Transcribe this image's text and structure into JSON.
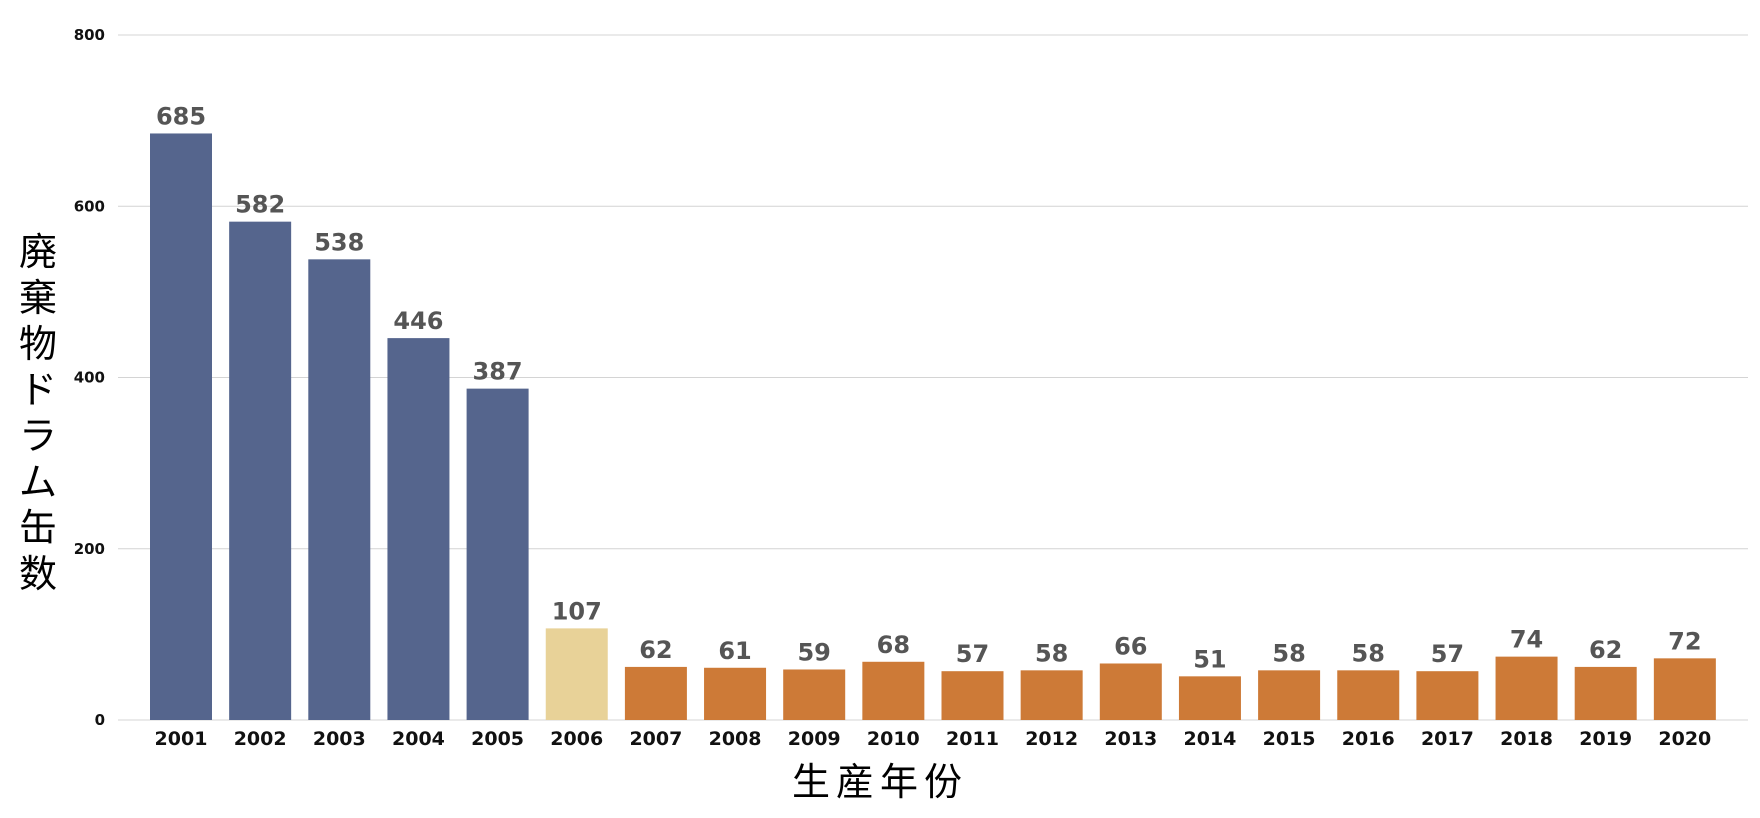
{
  "chart_data": {
    "type": "bar",
    "title": "",
    "xlabel": "生産年份",
    "ylabel": "廃棄物ドラム缶数",
    "ylim": [
      0,
      800
    ],
    "yticks": [
      0,
      200,
      400,
      600,
      800
    ],
    "grid": true,
    "legend": "none",
    "categories": [
      "2001",
      "2002",
      "2003",
      "2004",
      "2005",
      "2006",
      "2007",
      "2008",
      "2009",
      "2010",
      "2011",
      "2012",
      "2013",
      "2014",
      "2015",
      "2016",
      "2017",
      "2018",
      "2019",
      "2020"
    ],
    "values": [
      685,
      582,
      538,
      446,
      387,
      107,
      62,
      61,
      59,
      68,
      57,
      58,
      66,
      51,
      58,
      58,
      57,
      74,
      62,
      72
    ],
    "bar_colors": [
      "#55658d",
      "#55658d",
      "#55658d",
      "#55658d",
      "#55658d",
      "#e8d298",
      "#cd7a37",
      "#cd7a37",
      "#cd7a37",
      "#cd7a37",
      "#cd7a37",
      "#cd7a37",
      "#cd7a37",
      "#cd7a37",
      "#cd7a37",
      "#cd7a37",
      "#cd7a37",
      "#cd7a37",
      "#cd7a37",
      "#cd7a37"
    ]
  }
}
